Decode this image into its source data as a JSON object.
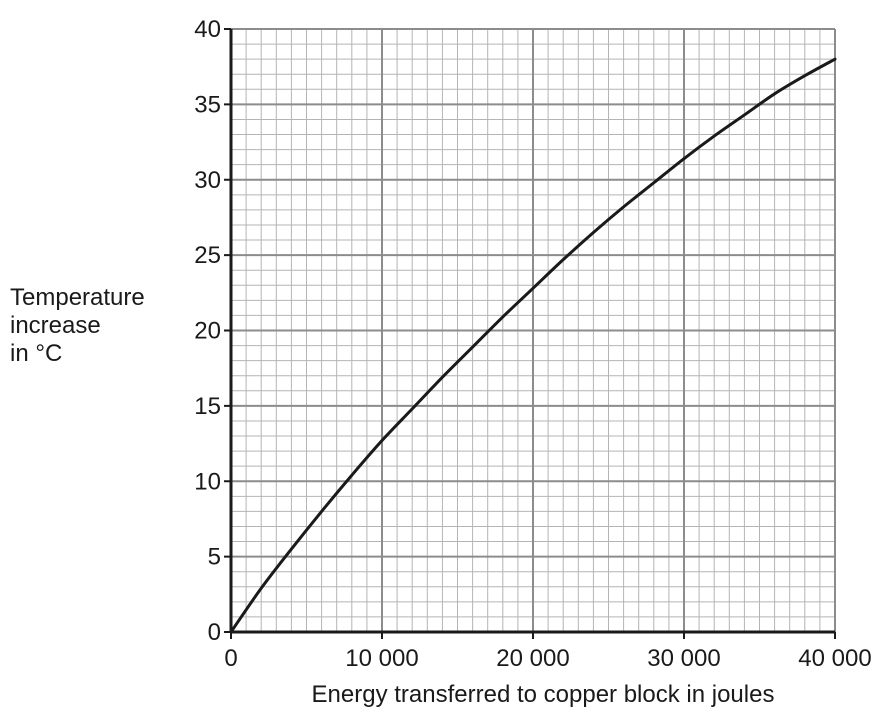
{
  "chart_data": {
    "type": "line",
    "title": "",
    "xlabel": "Energy transferred to copper block in joules",
    "ylabel_lines": [
      "Temperature",
      "increase",
      "in °C"
    ],
    "xlim": [
      0,
      40000
    ],
    "ylim": [
      0,
      40
    ],
    "x_major_step": 10000,
    "y_major_step": 5,
    "x_minor_step": 1000,
    "y_minor_step": 1,
    "x_tick_labels": [
      "0",
      "10 000",
      "20 000",
      "30 000",
      "40 000"
    ],
    "y_tick_labels": [
      "0",
      "5",
      "10",
      "15",
      "20",
      "25",
      "30",
      "35",
      "40"
    ],
    "grid": true,
    "legend": "none",
    "series": [
      {
        "x": [
          0,
          2000,
          4000,
          6000,
          8000,
          10000,
          12000,
          14000,
          16000,
          18000,
          20000,
          22000,
          24000,
          26000,
          28000,
          30000,
          32000,
          34000,
          36000,
          38000,
          40000
        ],
        "y": [
          0,
          2.9,
          5.5,
          8.0,
          10.4,
          12.7,
          14.8,
          16.9,
          18.9,
          20.9,
          22.8,
          24.7,
          26.5,
          28.2,
          29.8,
          31.4,
          32.9,
          34.3,
          35.7,
          36.9,
          38.0
        ]
      }
    ],
    "colors": {
      "major_grid": "#8c8c8c",
      "minor_grid": "#b4b4b4",
      "axis": "#1a1a1a",
      "line": "#1a1a1a"
    }
  }
}
